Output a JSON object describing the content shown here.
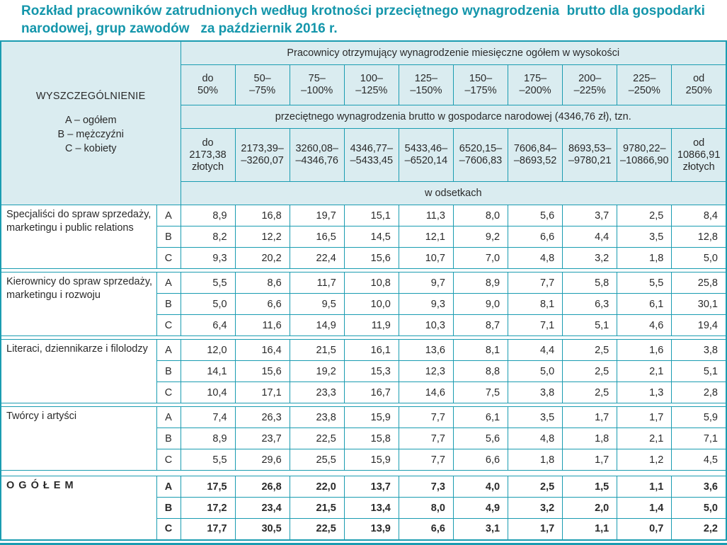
{
  "title": "Rozkład pracowników zatrudnionych według krotności przeciętnego wynagrodzenia  brutto dla gospodarki narodowej, grup zawodów   za październik 2016 r.",
  "colors": {
    "accent_teal": "#1496ab",
    "border_teal": "#1a9cb1",
    "header_bg": "#daecf0",
    "text": "#2a2a2a"
  },
  "table": {
    "stub": {
      "heading": "WYSZCZEGÓLNIENIE",
      "legend": [
        "A – ogółem",
        "B – mężczyźni",
        "C – kobiety"
      ]
    },
    "header": {
      "band1": "Pracownicy otrzymujący wynagrodzenie miesięczne ogółem w wysokości",
      "percent_ranges": [
        "do\n50%",
        "50–\n–75%",
        "75–\n–100%",
        "100–\n–125%",
        "125–\n–150%",
        "150–\n–175%",
        "175–\n–200%",
        "200–\n–225%",
        "225–\n–250%",
        "od\n250%"
      ],
      "band2": "przeciętnego wynagrodzenia brutto w gospodarce narodowej (4346,76 zł), tzn.",
      "zloty_ranges": [
        "do\n2173,38\nzłotych",
        "2173,39–\n–3260,07",
        "3260,08–\n–4346,76",
        "4346,77–\n–5433,45",
        "5433,46–\n–6520,14",
        "6520,15–\n–7606,83",
        "7606,84–\n–8693,52",
        "8693,53–\n–9780,21",
        "9780,22–\n–10866,90",
        "od\n10866,91\nzłotych"
      ],
      "band3": "w odsetkach"
    },
    "groups": [
      {
        "name": "Specjaliści do spraw sprzedaży, marketingu i public relations",
        "rows": [
          {
            "label": "A",
            "values": [
              "8,9",
              "16,8",
              "19,7",
              "15,1",
              "11,3",
              "8,0",
              "5,6",
              "3,7",
              "2,5",
              "8,4"
            ]
          },
          {
            "label": "B",
            "values": [
              "8,2",
              "12,2",
              "16,5",
              "14,5",
              "12,1",
              "9,2",
              "6,6",
              "4,4",
              "3,5",
              "12,8"
            ]
          },
          {
            "label": "C",
            "values": [
              "9,3",
              "20,2",
              "22,4",
              "15,6",
              "10,7",
              "7,0",
              "4,8",
              "3,2",
              "1,8",
              "5,0"
            ]
          }
        ]
      },
      {
        "name": "Kierownicy do spraw sprzedaży, marketingu i rozwoju",
        "rows": [
          {
            "label": "A",
            "values": [
              "5,5",
              "8,6",
              "11,7",
              "10,8",
              "9,7",
              "8,9",
              "7,7",
              "5,8",
              "5,5",
              "25,8"
            ]
          },
          {
            "label": "B",
            "values": [
              "5,0",
              "6,6",
              "9,5",
              "10,0",
              "9,3",
              "9,0",
              "8,1",
              "6,3",
              "6,1",
              "30,1"
            ]
          },
          {
            "label": "C",
            "values": [
              "6,4",
              "11,6",
              "14,9",
              "11,9",
              "10,3",
              "8,7",
              "7,1",
              "5,1",
              "4,6",
              "19,4"
            ]
          }
        ]
      },
      {
        "name": "Literaci, dziennikarze i filolodzy",
        "rows": [
          {
            "label": "A",
            "values": [
              "12,0",
              "16,4",
              "21,5",
              "16,1",
              "13,6",
              "8,1",
              "4,4",
              "2,5",
              "1,6",
              "3,8"
            ]
          },
          {
            "label": "B",
            "values": [
              "14,1",
              "15,6",
              "19,2",
              "15,3",
              "12,3",
              "8,8",
              "5,0",
              "2,5",
              "2,1",
              "5,1"
            ]
          },
          {
            "label": "C",
            "values": [
              "10,4",
              "17,1",
              "23,3",
              "16,7",
              "14,6",
              "7,5",
              "3,8",
              "2,5",
              "1,3",
              "2,8"
            ]
          }
        ]
      },
      {
        "name": "Twórcy i artyści",
        "rows": [
          {
            "label": "A",
            "values": [
              "7,4",
              "26,3",
              "23,8",
              "15,9",
              "7,7",
              "6,1",
              "3,5",
              "1,7",
              "1,7",
              "5,9"
            ]
          },
          {
            "label": "B",
            "values": [
              "8,9",
              "23,7",
              "22,5",
              "15,8",
              "7,7",
              "5,6",
              "4,8",
              "1,8",
              "2,1",
              "7,1"
            ]
          },
          {
            "label": "C",
            "values": [
              "5,5",
              "29,6",
              "25,5",
              "15,9",
              "7,7",
              "6,6",
              "1,8",
              "1,7",
              "1,2",
              "4,5"
            ]
          }
        ]
      }
    ],
    "total": {
      "name": "O G Ó Ł E M",
      "rows": [
        {
          "label": "A",
          "values": [
            "17,5",
            "26,8",
            "22,0",
            "13,7",
            "7,3",
            "4,0",
            "2,5",
            "1,5",
            "1,1",
            "3,6"
          ]
        },
        {
          "label": "B",
          "values": [
            "17,2",
            "23,4",
            "21,5",
            "13,4",
            "8,0",
            "4,9",
            "3,2",
            "2,0",
            "1,4",
            "5,0"
          ]
        },
        {
          "label": "C",
          "values": [
            "17,7",
            "30,5",
            "22,5",
            "13,9",
            "6,6",
            "3,1",
            "1,7",
            "1,1",
            "0,7",
            "2,2"
          ]
        }
      ]
    }
  }
}
